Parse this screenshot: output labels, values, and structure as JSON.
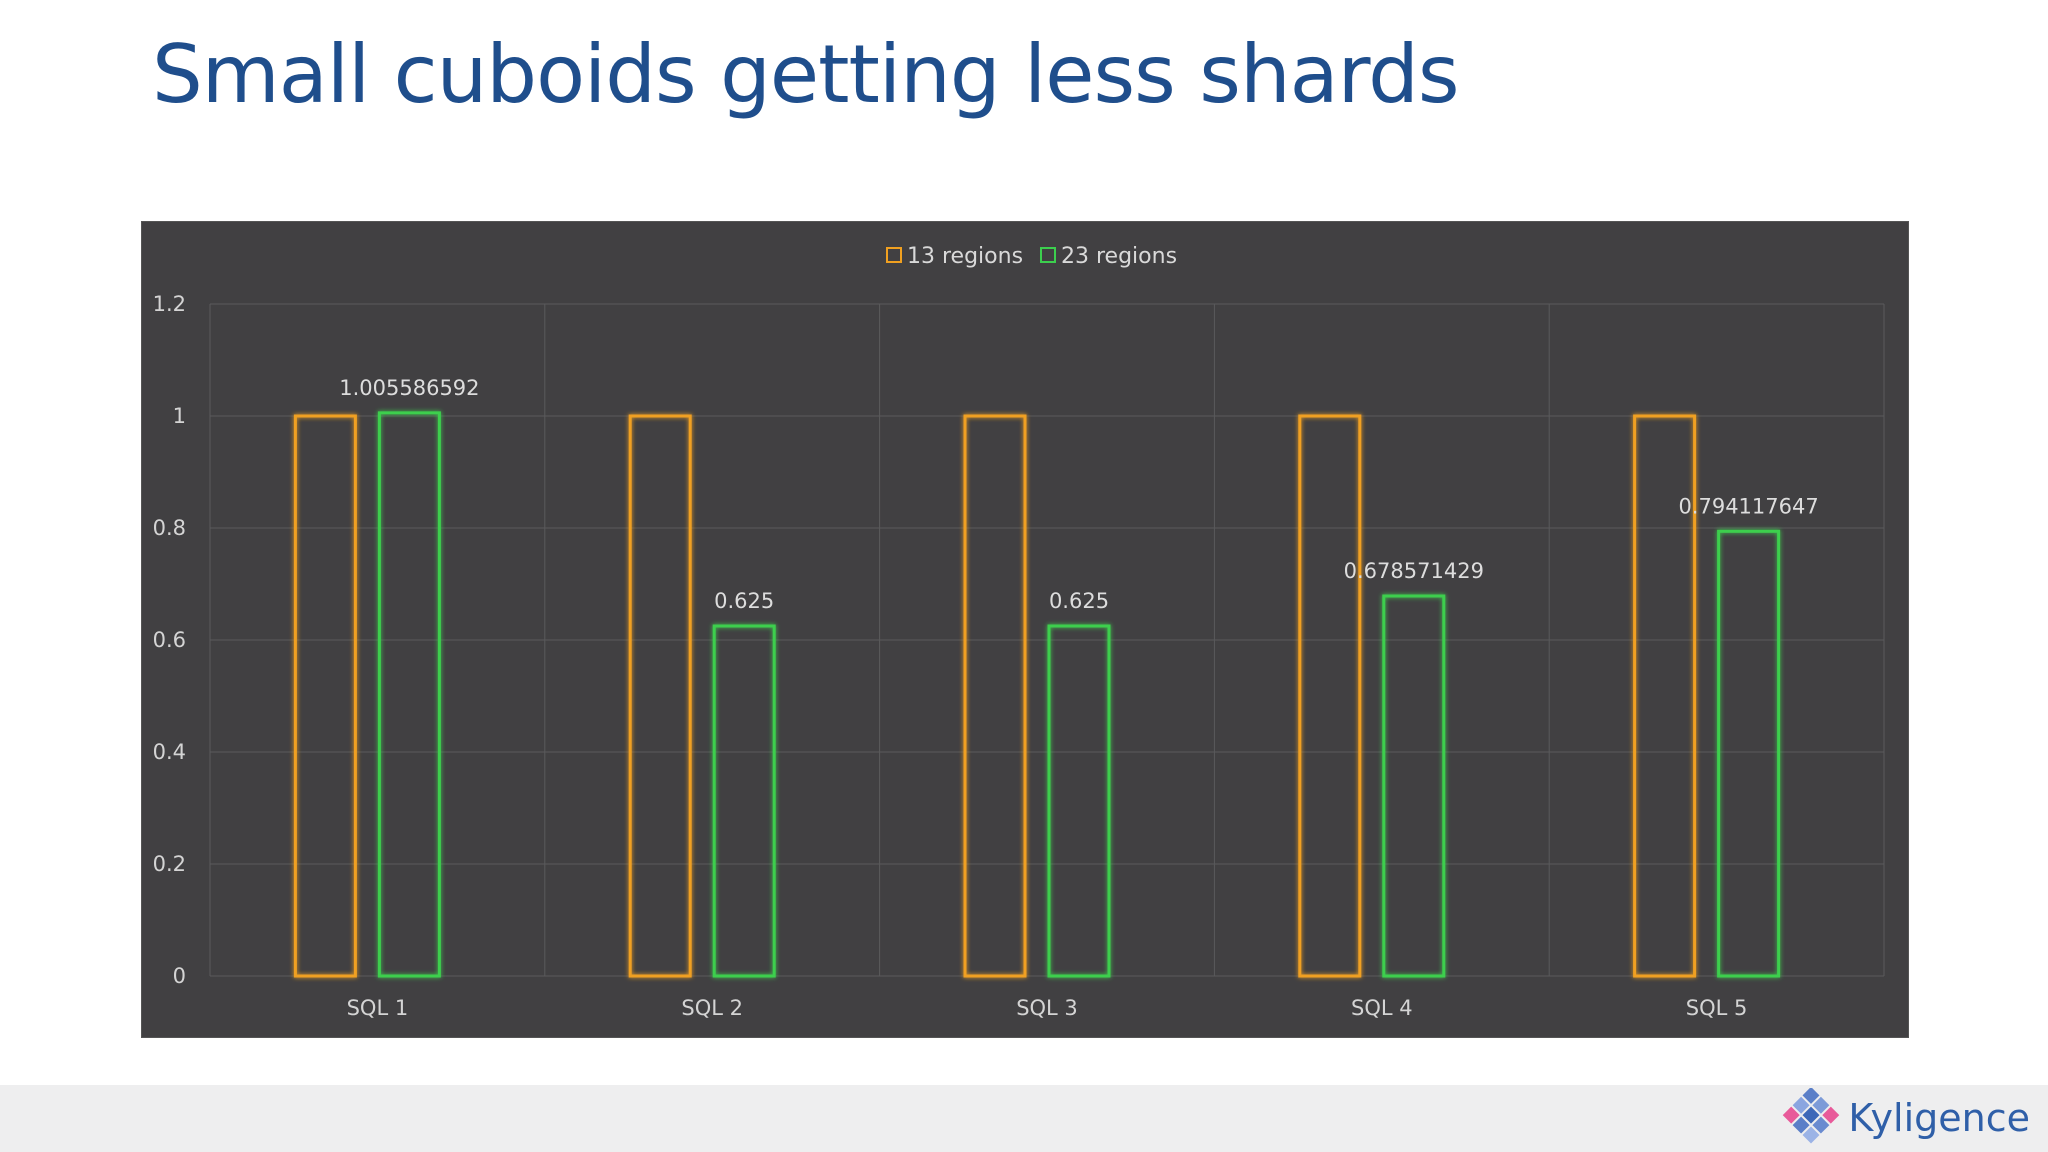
{
  "slide": {
    "title": "Small cuboids getting less shards",
    "brand": "Kyligence"
  },
  "colors": {
    "series_13": "#f0a020",
    "series_23": "#3ccf4e",
    "panel_bg": "#414042",
    "title": "#1f4e8c"
  },
  "chart_data": {
    "type": "bar",
    "title": "",
    "xlabel": "",
    "ylabel": "",
    "categories": [
      "SQL 1",
      "SQL 2",
      "SQL 3",
      "SQL 4",
      "SQL 5"
    ],
    "series": [
      {
        "name": "13 regions",
        "values": [
          1,
          1,
          1,
          1,
          1
        ],
        "data_labels": [
          "",
          "",
          "",
          "",
          ""
        ]
      },
      {
        "name": "23 regions",
        "values": [
          1.005586592,
          0.625,
          0.625,
          0.678571429,
          0.794117647
        ],
        "data_labels": [
          "1.005586592",
          "0.625",
          "0.625",
          "0.678571429",
          "0.794117647"
        ]
      }
    ],
    "ylim": [
      0,
      1.2
    ],
    "yticks": [
      0,
      0.2,
      0.4,
      0.6,
      0.8,
      1,
      1.2
    ],
    "ytick_labels": [
      "0",
      "0.2",
      "0.4",
      "0.6",
      "0.8",
      "1",
      "1.2"
    ],
    "grid": true,
    "legend": "top-center",
    "bar_style": "outlined-glow"
  }
}
